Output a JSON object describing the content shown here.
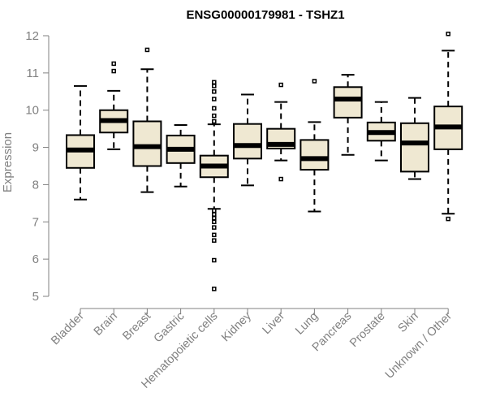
{
  "chart_data": {
    "type": "boxplot",
    "title": "ENSG00000179981 - TSHZ1",
    "xlabel": "",
    "ylabel": "Expression",
    "ylim": [
      5,
      12
    ],
    "yticks": [
      5,
      6,
      7,
      8,
      9,
      10,
      11,
      12
    ],
    "colors": {
      "box_fill": "#efe8d2",
      "median": "#000000",
      "outlier": "#000000",
      "axis": "#808080"
    },
    "categories": [
      "Bladder",
      "Brain",
      "Breast",
      "Gastric",
      "Hematopoietic cells",
      "Kidney",
      "Liver",
      "Lung",
      "Pancreas",
      "Prostate",
      "Skin",
      "Unknown / Other"
    ],
    "boxes": [
      {
        "name": "Bladder",
        "whisker_low": 7.6,
        "q1": 8.45,
        "median": 8.93,
        "q3": 9.33,
        "whisker_high": 10.65,
        "outliers": []
      },
      {
        "name": "Brain",
        "whisker_low": 8.95,
        "q1": 9.4,
        "median": 9.72,
        "q3": 10.0,
        "whisker_high": 10.52,
        "outliers": [
          11.05,
          11.25
        ]
      },
      {
        "name": "Breast",
        "whisker_low": 7.8,
        "q1": 8.5,
        "median": 9.02,
        "q3": 9.7,
        "whisker_high": 11.1,
        "outliers": [
          11.62
        ]
      },
      {
        "name": "Gastric",
        "whisker_low": 7.95,
        "q1": 8.58,
        "median": 8.95,
        "q3": 9.32,
        "whisker_high": 9.6,
        "outliers": []
      },
      {
        "name": "Hematopoietic cells",
        "whisker_low": 7.35,
        "q1": 8.2,
        "median": 8.5,
        "q3": 8.78,
        "whisker_high": 9.62,
        "outliers": [
          9.7,
          9.85,
          10.05,
          10.3,
          10.5,
          10.65,
          10.75,
          7.3,
          7.2,
          7.1,
          7.0,
          6.85,
          6.65,
          6.5,
          5.97,
          5.2
        ]
      },
      {
        "name": "Kidney",
        "whisker_low": 7.98,
        "q1": 8.7,
        "median": 9.05,
        "q3": 9.63,
        "whisker_high": 10.42,
        "outliers": []
      },
      {
        "name": "Liver",
        "whisker_low": 8.65,
        "q1": 8.97,
        "median": 9.08,
        "q3": 9.5,
        "whisker_high": 10.22,
        "outliers": [
          10.68,
          8.15
        ]
      },
      {
        "name": "Lung",
        "whisker_low": 7.28,
        "q1": 8.4,
        "median": 8.7,
        "q3": 9.2,
        "whisker_high": 9.68,
        "outliers": [
          10.78
        ]
      },
      {
        "name": "Pancreas",
        "whisker_low": 8.8,
        "q1": 9.8,
        "median": 10.3,
        "q3": 10.62,
        "whisker_high": 10.95,
        "outliers": []
      },
      {
        "name": "Prostate",
        "whisker_low": 8.65,
        "q1": 9.18,
        "median": 9.4,
        "q3": 9.67,
        "whisker_high": 10.22,
        "outliers": []
      },
      {
        "name": "Skin",
        "whisker_low": 8.15,
        "q1": 8.35,
        "median": 9.12,
        "q3": 9.65,
        "whisker_high": 10.33,
        "outliers": []
      },
      {
        "name": "Unknown / Other",
        "whisker_low": 7.22,
        "q1": 8.95,
        "median": 9.55,
        "q3": 10.1,
        "whisker_high": 11.6,
        "outliers": [
          12.05,
          7.08
        ]
      }
    ]
  }
}
